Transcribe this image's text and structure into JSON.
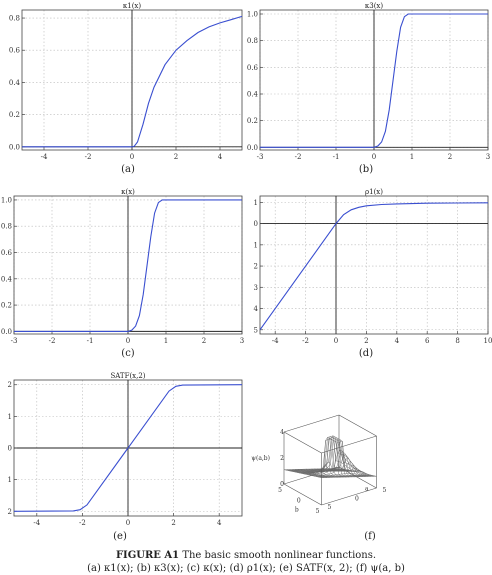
{
  "figure": {
    "caption_label": "FIGURE A1",
    "caption_title": "The basic smooth nonlinear functions.",
    "caption_list": "(a) κ1(x); (b) κ3(x); (c) κ(x); (d) ρ1(x); (e) SATF(x, 2); (f) ψ(a, b)"
  },
  "chart_data": [
    {
      "type": "line",
      "id": "a",
      "sublabel": "(a)",
      "title": "κ1(x)",
      "xlim": [
        -5,
        5
      ],
      "ylim": [
        -0.02,
        0.85
      ],
      "xticks": [
        -4,
        -2,
        0,
        2,
        4
      ],
      "yticks": [
        0.0,
        0.2,
        0.4,
        0.6,
        0.8
      ],
      "ytick_labels": [
        "0.0",
        "0.2",
        "0.4",
        "0.6",
        "0.8"
      ],
      "grid": true,
      "series": [
        {
          "x": [
            -5,
            -1,
            0,
            0.1,
            0.25,
            0.5,
            0.75,
            1,
            1.5,
            2,
            2.5,
            3,
            3.5,
            4,
            4.5,
            5
          ],
          "y": [
            0,
            0,
            0,
            0.003,
            0.03,
            0.14,
            0.27,
            0.37,
            0.51,
            0.6,
            0.66,
            0.71,
            0.745,
            0.77,
            0.79,
            0.81
          ]
        }
      ]
    },
    {
      "type": "line",
      "id": "b",
      "sublabel": "(b)",
      "title": "κ3(x)",
      "xlim": [
        -3,
        3
      ],
      "ylim": [
        -0.02,
        1.03
      ],
      "xticks": [
        -3,
        -2,
        -1,
        0,
        1,
        2,
        3
      ],
      "yticks": [
        0.0,
        0.2,
        0.4,
        0.6,
        0.8,
        1.0
      ],
      "ytick_labels": [
        "0.0",
        "0.2",
        "0.4",
        "0.6",
        "0.8",
        "1.0"
      ],
      "grid": true,
      "series": [
        {
          "x": [
            -3,
            0,
            0.1,
            0.2,
            0.3,
            0.4,
            0.5,
            0.6,
            0.7,
            0.8,
            0.9,
            1.0,
            3
          ],
          "y": [
            0,
            0,
            0.01,
            0.04,
            0.12,
            0.28,
            0.5,
            0.72,
            0.9,
            0.98,
            1.0,
            1.0,
            1.0
          ]
        }
      ]
    },
    {
      "type": "line",
      "id": "c",
      "sublabel": "(c)",
      "title": "κ(x)",
      "xlim": [
        -3,
        3
      ],
      "ylim": [
        -0.02,
        1.03
      ],
      "xticks": [
        -3,
        -2,
        -1,
        0,
        1,
        2,
        3
      ],
      "yticks": [
        0.0,
        0.2,
        0.4,
        0.6,
        0.8,
        1.0
      ],
      "ytick_labels": [
        "0.0",
        "0.2",
        "0.4",
        "0.6",
        "0.8",
        "1.0"
      ],
      "grid": true,
      "series": [
        {
          "x": [
            -3,
            0,
            0.1,
            0.2,
            0.3,
            0.4,
            0.5,
            0.6,
            0.7,
            0.8,
            0.9,
            1.0,
            3
          ],
          "y": [
            0,
            0,
            0.01,
            0.04,
            0.12,
            0.28,
            0.5,
            0.72,
            0.9,
            0.98,
            1.0,
            1.0,
            1.0
          ]
        }
      ]
    },
    {
      "type": "line",
      "id": "d",
      "sublabel": "(d)",
      "title": "ρ1(x)",
      "xlim": [
        -5,
        10
      ],
      "ylim": [
        -5.2,
        1.3
      ],
      "xticks": [
        -4,
        -2,
        0,
        2,
        4,
        6,
        8,
        10
      ],
      "yticks": [
        -5,
        -4,
        -3,
        -2,
        -1,
        0,
        1
      ],
      "ytick_labels": [
        "5",
        "4",
        "3",
        "2",
        "1",
        "0",
        "1"
      ],
      "grid": true,
      "series": [
        {
          "x": [
            -5,
            -2,
            0,
            0.5,
            1,
            1.5,
            2,
            3,
            4,
            6,
            8,
            10
          ],
          "y": [
            -5,
            -2,
            0,
            0.42,
            0.65,
            0.77,
            0.84,
            0.9,
            0.93,
            0.96,
            0.97,
            0.98
          ]
        }
      ]
    },
    {
      "type": "line",
      "id": "e",
      "sublabel": "(e)",
      "title": "SATF(x,2)",
      "xlim": [
        -5,
        5
      ],
      "ylim": [
        -2.15,
        2.15
      ],
      "xticks": [
        -4,
        -2,
        0,
        2,
        4
      ],
      "yticks": [
        -2,
        -1,
        0,
        1,
        2
      ],
      "ytick_labels": [
        "2",
        "1",
        "0",
        "1",
        "2"
      ],
      "grid": true,
      "series": [
        {
          "x": [
            -5,
            -2.4,
            -2.1,
            -1.8,
            1.8,
            2.1,
            2.4,
            5
          ],
          "y": [
            -2,
            -1.99,
            -1.95,
            -1.8,
            1.8,
            1.95,
            1.99,
            2
          ]
        }
      ]
    },
    {
      "type": "surface",
      "id": "f",
      "sublabel": "(f)",
      "zlabel": "ψ(a,b)",
      "alabel": "a",
      "blabel": "b",
      "xlim": [
        -5,
        5
      ],
      "ylim": [
        -5,
        5
      ],
      "xtick_labels": [
        "5",
        "0",
        "5"
      ],
      "ytick_labels": [
        "5",
        "0",
        "5"
      ],
      "ztick_labels": [
        "4",
        "2",
        "0"
      ]
    }
  ]
}
